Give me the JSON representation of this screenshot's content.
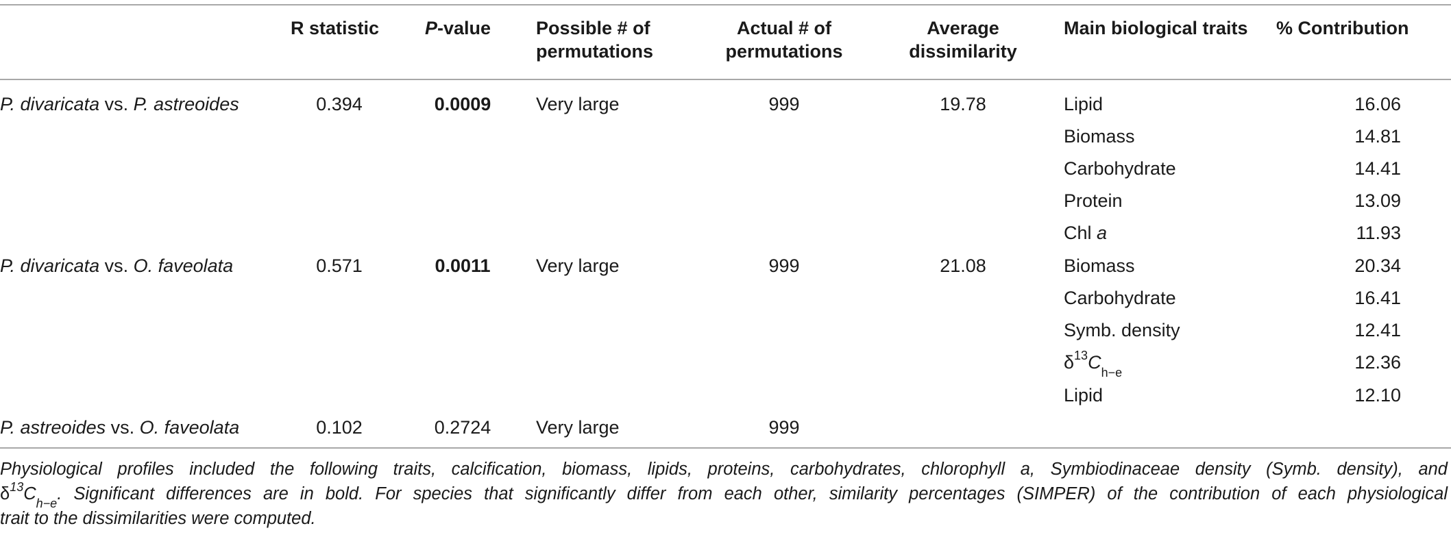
{
  "columns": {
    "r_statistic": "R statistic",
    "p_value_p": "P",
    "p_value_rest": "-value",
    "possible_line1": "Possible # of",
    "possible_line2": "permutations",
    "actual_line1": "Actual # of",
    "actual_line2": "permutations",
    "avg_line1": "Average",
    "avg_line2": "dissimilarity",
    "traits": "Main biological traits",
    "contribution": "% Contribution"
  },
  "groups": [
    {
      "sp1": "P. divaricata",
      "vs": " vs. ",
      "sp2": "P. astreoides",
      "r": "0.394",
      "p": "0.0009",
      "possible": "Very large",
      "actual": "999",
      "avg": "19.78"
    },
    {
      "sp1": "P. divaricata",
      "vs": " vs. ",
      "sp2": "O. faveolata",
      "r": "0.571",
      "p": "0.0011",
      "possible": "Very large",
      "actual": "999",
      "avg": "21.08"
    },
    {
      "sp1": "P. astreoides",
      "vs": " vs. ",
      "sp2": "O. faveolata",
      "r": "0.102",
      "p": "0.2724",
      "possible": "Very large",
      "actual": "999",
      "avg": ""
    }
  ],
  "traits": [
    {
      "name": "Lipid",
      "value": "16.06"
    },
    {
      "name": "Biomass",
      "value": "14.81"
    },
    {
      "name": "Carbohydrate",
      "value": "14.41"
    },
    {
      "name": "Protein",
      "value": "13.09"
    },
    {
      "name_main": "Chl ",
      "name_it": "a",
      "value": "11.93"
    },
    {
      "name": "Biomass",
      "value": "20.34"
    },
    {
      "name": "Carbohydrate",
      "value": "16.41"
    },
    {
      "name": "Symb. density",
      "value": "12.41"
    },
    {
      "name_delta": "δ",
      "name_sup": "13",
      "name_c": "C",
      "name_sub": "h−e",
      "value": "12.36"
    },
    {
      "name": "Lipid",
      "value": "12.10"
    }
  ],
  "footnote": {
    "line1_a": "Physiological profiles included the following traits, calcification, biomass, lipids, proteins, carbohydrates, chlorophyll a, Symbiodinaceae density (Symb. density), and",
    "line2_delta": "δ",
    "line2_sup": "13",
    "line2_c": "C",
    "line2_sub": "h−e",
    "line2_rest": ". Significant differences are in bold. For species that significantly differ from each other, similarity percentages (SIMPER) of the contribution of each physiological",
    "line3": "trait to the dissimilarities were computed."
  }
}
